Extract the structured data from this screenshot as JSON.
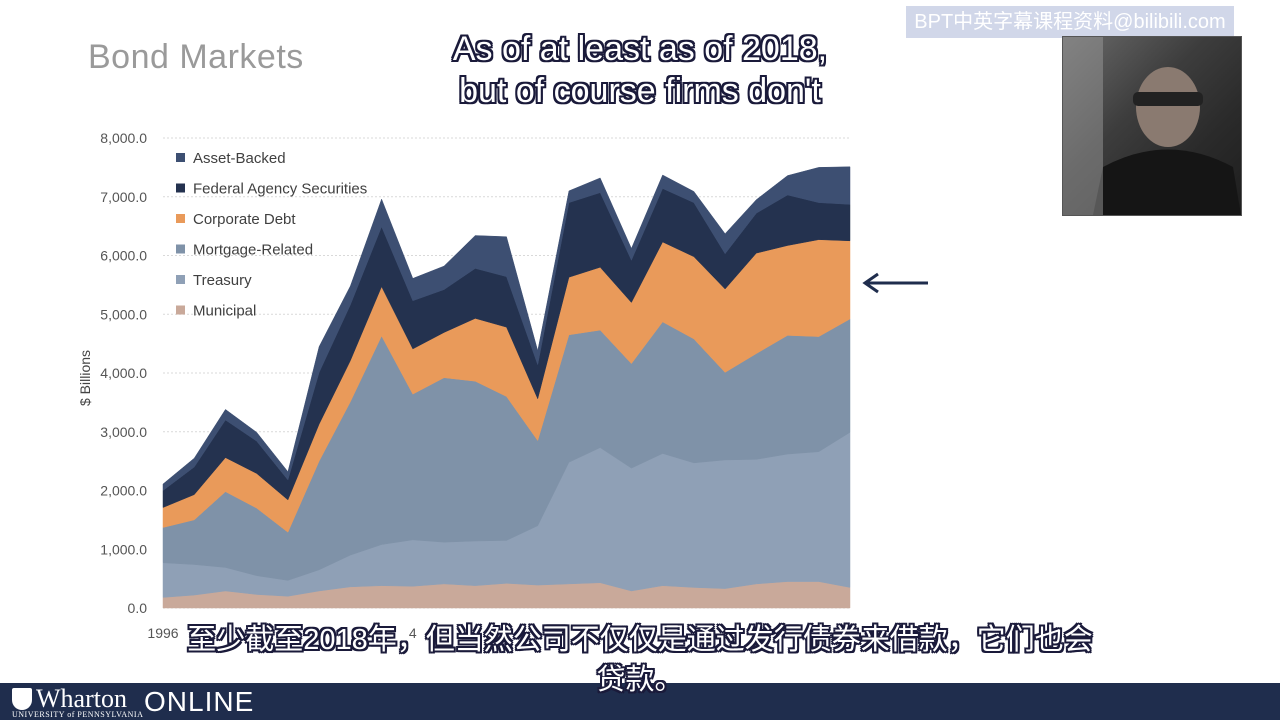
{
  "slide": {
    "title": "Bond Markets",
    "caption_en_line1": "As of at least as of 2018,",
    "caption_en_line2": "but of course firms don't",
    "caption_zh_line1": "至少截至2018年，但当然公司不仅仅是通过发行债券来借款，它们也会",
    "caption_zh_line2": "贷款。",
    "watermark": "BPT中英字幕课程资料@bilibili.com",
    "footer_brand": "Wharton",
    "footer_sub": "UNIVERSITY of PENNSYLVANIA",
    "footer_online": "ONLINE",
    "arrow_icon": "left-arrow-icon"
  },
  "chart_data": {
    "type": "area",
    "stacked": true,
    "title": "",
    "xlabel": "",
    "ylabel": "$ Billions",
    "ylim": [
      0,
      8000
    ],
    "yticks": [
      "0.0",
      "1,000.0",
      "2,000.0",
      "3,000.0",
      "4,000.0",
      "5,000.0",
      "6,000.0",
      "7,000.0",
      "8,000.0"
    ],
    "x": [
      1996,
      1997,
      1998,
      1999,
      2000,
      2001,
      2002,
      2003,
      2004,
      2005,
      2006,
      2007,
      2008,
      2009,
      2010,
      2011,
      2012,
      2013,
      2014,
      2015,
      2016,
      2017,
      2018
    ],
    "xtick_labels_visible": [
      "1996",
      "",
      "",
      "",
      "",
      "",
      "",
      "",
      "4"
    ],
    "legend_position": "top-left",
    "grid": true,
    "series": [
      {
        "name": "Municipal",
        "color": "#c9a99a",
        "values": [
          180,
          220,
          290,
          230,
          200,
          290,
          360,
          380,
          370,
          410,
          380,
          420,
          390,
          410,
          430,
          290,
          380,
          350,
          330,
          410,
          450,
          450,
          350
        ]
      },
      {
        "name": "Treasury",
        "color": "#8fa0b6",
        "values": [
          590,
          520,
          400,
          320,
          270,
          360,
          540,
          700,
          790,
          710,
          760,
          730,
          1010,
          2070,
          2300,
          2090,
          2250,
          2120,
          2190,
          2120,
          2170,
          2210,
          2640
        ]
      },
      {
        "name": "Mortgage-Related",
        "color": "#7f92a8",
        "values": [
          600,
          760,
          1290,
          1150,
          820,
          1850,
          2610,
          3550,
          2480,
          2800,
          2720,
          2450,
          1450,
          2170,
          2000,
          1780,
          2240,
          2110,
          1490,
          1800,
          2020,
          1960,
          1930
        ]
      },
      {
        "name": "Corporate Debt",
        "color": "#e99a5a",
        "values": [
          340,
          430,
          580,
          590,
          550,
          630,
          700,
          840,
          770,
          770,
          1070,
          1180,
          710,
          980,
          1070,
          1040,
          1360,
          1400,
          1420,
          1710,
          1530,
          1650,
          1330
        ]
      },
      {
        "name": "Federal Agency Securities",
        "color": "#24324f",
        "values": [
          290,
          470,
          640,
          550,
          340,
          880,
          950,
          1020,
          820,
          730,
          850,
          860,
          580,
          1270,
          1270,
          720,
          910,
          920,
          600,
          680,
          860,
          630,
          620
        ]
      },
      {
        "name": "Asset-Backed",
        "color": "#3d4f72",
        "values": [
          110,
          150,
          180,
          150,
          140,
          440,
          320,
          470,
          380,
          400,
          560,
          680,
          240,
          200,
          250,
          200,
          230,
          190,
          340,
          230,
          330,
          600,
          640
        ]
      }
    ]
  }
}
